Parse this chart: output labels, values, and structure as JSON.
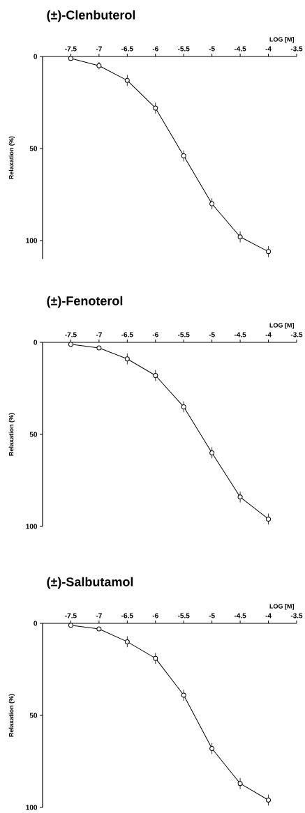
{
  "chart_data": [
    {
      "type": "line",
      "title": "(±)-Clenbuterol",
      "xlabel": "LOG [M]",
      "ylabel": "Relaxation (%)",
      "x": [
        -7.5,
        -7,
        -6.5,
        -6,
        -5.5,
        -5,
        -4.5,
        -4
      ],
      "xlim": [
        -8,
        -3.5
      ],
      "xticks": [
        -7.5,
        -7,
        -6.5,
        -6,
        -5.5,
        -5,
        -4.5,
        -4,
        -3.5
      ],
      "ylim": [
        110,
        0
      ],
      "yticks": [
        0,
        50,
        100
      ],
      "marker": "circle",
      "line_style": "solid",
      "series": [
        {
          "color": "#000000",
          "values": [
            1,
            5,
            13,
            28,
            54,
            80,
            98,
            106
          ],
          "errors": [
            null,
            2,
            3,
            3,
            3,
            3,
            3,
            3
          ]
        }
      ]
    },
    {
      "type": "line",
      "title": "(±)-Fenoterol",
      "xlabel": "LOG [M]",
      "ylabel": "Relaxation (%)",
      "x": [
        -7.5,
        -7,
        -6.5,
        -6,
        -5.5,
        -5,
        -4.5,
        -4
      ],
      "xlim": [
        -8,
        -3.5
      ],
      "xticks": [
        -7.5,
        -7,
        -6.5,
        -6,
        -5.5,
        -5,
        -4.5,
        -4,
        -3.5
      ],
      "ylim": [
        100,
        0
      ],
      "yticks": [
        0,
        50,
        100
      ],
      "marker": "circle",
      "line_style": "solid",
      "series": [
        {
          "color": "#000000",
          "values": [
            1,
            3,
            9,
            18,
            35,
            60,
            84,
            96
          ],
          "errors": [
            null,
            null,
            3,
            3,
            3,
            3,
            3,
            3
          ]
        }
      ]
    },
    {
      "type": "line",
      "title": "(±)-Salbutamol",
      "xlabel": "LOG [M]",
      "ylabel": "Relaxation (%)",
      "x": [
        -7.5,
        -7,
        -6.5,
        -6,
        -5.5,
        -5,
        -4.5,
        -4
      ],
      "xlim": [
        -8,
        -3.5
      ],
      "xticks": [
        -7.5,
        -7,
        -6.5,
        -6,
        -5.5,
        -5,
        -4.5,
        -4,
        -3.5
      ],
      "ylim": [
        100,
        0
      ],
      "yticks": [
        0,
        50,
        100
      ],
      "marker": "circle",
      "line_style": "solid",
      "series": [
        {
          "color": "#000000",
          "values": [
            1,
            3,
            10,
            19,
            39,
            68,
            87,
            96
          ],
          "errors": [
            null,
            null,
            3,
            3,
            3,
            3,
            3,
            3
          ]
        }
      ]
    }
  ]
}
